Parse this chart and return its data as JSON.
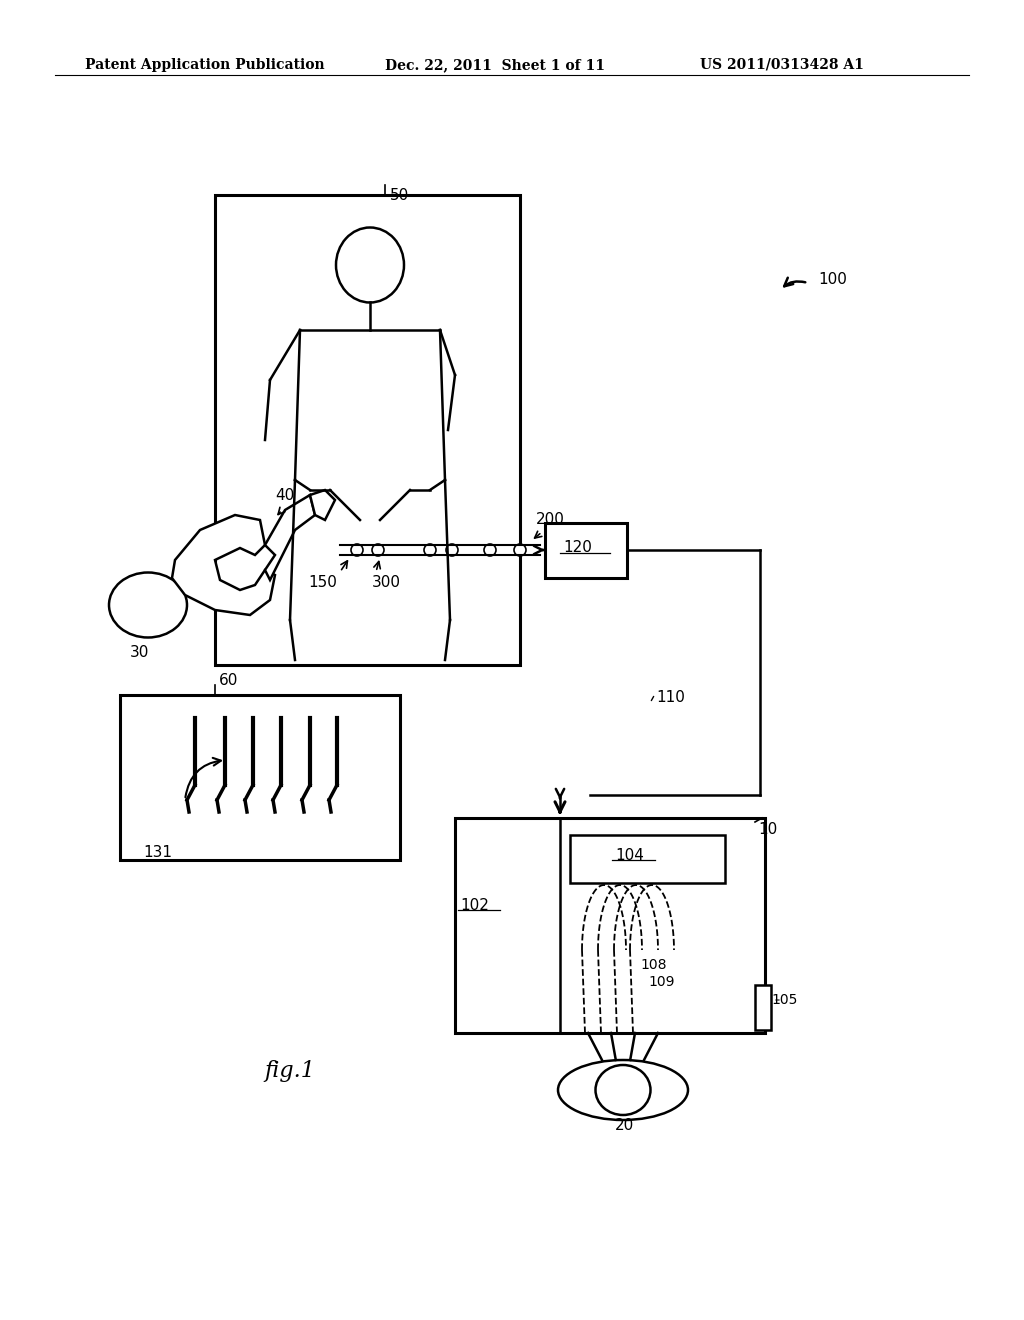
{
  "background_color": "#ffffff",
  "header_left": "Patent Application Publication",
  "header_center": "Dec. 22, 2011  Sheet 1 of 11",
  "header_right": "US 2011/0313428 A1",
  "fig_label": "fig.1"
}
